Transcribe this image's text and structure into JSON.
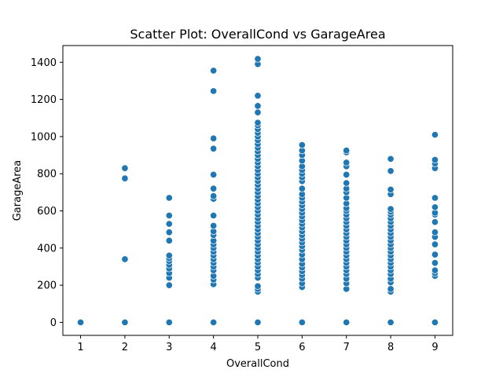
{
  "chart_data": {
    "type": "scatter",
    "title": "Scatter Plot: OverallCond vs GarageArea",
    "xlabel": "OverallCond",
    "ylabel": "GarageArea",
    "xlim": [
      0.6,
      9.4
    ],
    "ylim": [
      -70,
      1490
    ],
    "xticks": [
      1,
      2,
      3,
      4,
      5,
      6,
      7,
      8,
      9
    ],
    "yticks": [
      0,
      200,
      400,
      600,
      800,
      1000,
      1200,
      1400
    ],
    "grid": false,
    "point_color": "#1f77b4",
    "series": [
      {
        "points": [
          [
            1,
            0
          ],
          [
            2,
            0
          ],
          [
            2,
            340
          ],
          [
            2,
            775
          ],
          [
            2,
            830
          ],
          [
            3,
            0
          ],
          [
            3,
            200
          ],
          [
            3,
            240
          ],
          [
            3,
            265
          ],
          [
            3,
            290
          ],
          [
            3,
            310
          ],
          [
            3,
            330
          ],
          [
            3,
            345
          ],
          [
            3,
            360
          ],
          [
            3,
            440
          ],
          [
            3,
            485
          ],
          [
            3,
            530
          ],
          [
            3,
            575
          ],
          [
            3,
            670
          ],
          [
            4,
            0
          ],
          [
            4,
            205
          ],
          [
            4,
            230
          ],
          [
            4,
            250
          ],
          [
            4,
            280
          ],
          [
            4,
            300
          ],
          [
            4,
            320
          ],
          [
            4,
            340
          ],
          [
            4,
            360
          ],
          [
            4,
            380
          ],
          [
            4,
            400
          ],
          [
            4,
            420
          ],
          [
            4,
            440
          ],
          [
            4,
            470
          ],
          [
            4,
            490
          ],
          [
            4,
            520
          ],
          [
            4,
            575
          ],
          [
            4,
            665
          ],
          [
            4,
            680
          ],
          [
            4,
            720
          ],
          [
            4,
            795
          ],
          [
            4,
            935
          ],
          [
            4,
            990
          ],
          [
            4,
            1245
          ],
          [
            4,
            1355
          ],
          [
            5,
            0
          ],
          [
            5,
            165
          ],
          [
            5,
            180
          ],
          [
            5,
            195
          ],
          [
            5,
            240
          ],
          [
            5,
            260
          ],
          [
            5,
            280
          ],
          [
            5,
            300
          ],
          [
            5,
            320
          ],
          [
            5,
            340
          ],
          [
            5,
            360
          ],
          [
            5,
            380
          ],
          [
            5,
            400
          ],
          [
            5,
            420
          ],
          [
            5,
            440
          ],
          [
            5,
            460
          ],
          [
            5,
            480
          ],
          [
            5,
            500
          ],
          [
            5,
            520
          ],
          [
            5,
            540
          ],
          [
            5,
            560
          ],
          [
            5,
            580
          ],
          [
            5,
            600
          ],
          [
            5,
            620
          ],
          [
            5,
            640
          ],
          [
            5,
            660
          ],
          [
            5,
            680
          ],
          [
            5,
            700
          ],
          [
            5,
            720
          ],
          [
            5,
            740
          ],
          [
            5,
            760
          ],
          [
            5,
            780
          ],
          [
            5,
            800
          ],
          [
            5,
            820
          ],
          [
            5,
            840
          ],
          [
            5,
            860
          ],
          [
            5,
            880
          ],
          [
            5,
            900
          ],
          [
            5,
            920
          ],
          [
            5,
            940
          ],
          [
            5,
            960
          ],
          [
            5,
            980
          ],
          [
            5,
            1000
          ],
          [
            5,
            1020
          ],
          [
            5,
            1040
          ],
          [
            5,
            1060
          ],
          [
            5,
            1075
          ],
          [
            5,
            1130
          ],
          [
            5,
            1165
          ],
          [
            5,
            1220
          ],
          [
            5,
            1390
          ],
          [
            5,
            1418
          ],
          [
            6,
            0
          ],
          [
            6,
            190
          ],
          [
            6,
            210
          ],
          [
            6,
            235
          ],
          [
            6,
            255
          ],
          [
            6,
            275
          ],
          [
            6,
            295
          ],
          [
            6,
            315
          ],
          [
            6,
            340
          ],
          [
            6,
            365
          ],
          [
            6,
            390
          ],
          [
            6,
            410
          ],
          [
            6,
            430
          ],
          [
            6,
            450
          ],
          [
            6,
            470
          ],
          [
            6,
            490
          ],
          [
            6,
            510
          ],
          [
            6,
            530
          ],
          [
            6,
            550
          ],
          [
            6,
            570
          ],
          [
            6,
            590
          ],
          [
            6,
            610
          ],
          [
            6,
            630
          ],
          [
            6,
            650
          ],
          [
            6,
            670
          ],
          [
            6,
            690
          ],
          [
            6,
            720
          ],
          [
            6,
            760
          ],
          [
            6,
            780
          ],
          [
            6,
            800
          ],
          [
            6,
            820
          ],
          [
            6,
            840
          ],
          [
            6,
            870
          ],
          [
            6,
            900
          ],
          [
            6,
            925
          ],
          [
            6,
            955
          ],
          [
            7,
            0
          ],
          [
            7,
            180
          ],
          [
            7,
            210
          ],
          [
            7,
            235
          ],
          [
            7,
            260
          ],
          [
            7,
            280
          ],
          [
            7,
            300
          ],
          [
            7,
            320
          ],
          [
            7,
            340
          ],
          [
            7,
            360
          ],
          [
            7,
            380
          ],
          [
            7,
            400
          ],
          [
            7,
            420
          ],
          [
            7,
            440
          ],
          [
            7,
            460
          ],
          [
            7,
            480
          ],
          [
            7,
            500
          ],
          [
            7,
            520
          ],
          [
            7,
            540
          ],
          [
            7,
            560
          ],
          [
            7,
            580
          ],
          [
            7,
            600
          ],
          [
            7,
            615
          ],
          [
            7,
            640
          ],
          [
            7,
            670
          ],
          [
            7,
            700
          ],
          [
            7,
            720
          ],
          [
            7,
            750
          ],
          [
            7,
            795
          ],
          [
            7,
            840
          ],
          [
            7,
            860
          ],
          [
            7,
            915
          ],
          [
            7,
            925
          ],
          [
            8,
            0
          ],
          [
            8,
            165
          ],
          [
            8,
            180
          ],
          [
            8,
            215
          ],
          [
            8,
            235
          ],
          [
            8,
            260
          ],
          [
            8,
            280
          ],
          [
            8,
            300
          ],
          [
            8,
            320
          ],
          [
            8,
            340
          ],
          [
            8,
            360
          ],
          [
            8,
            380
          ],
          [
            8,
            400
          ],
          [
            8,
            420
          ],
          [
            8,
            440
          ],
          [
            8,
            460
          ],
          [
            8,
            480
          ],
          [
            8,
            500
          ],
          [
            8,
            520
          ],
          [
            8,
            540
          ],
          [
            8,
            560
          ],
          [
            8,
            580
          ],
          [
            8,
            595
          ],
          [
            8,
            610
          ],
          [
            8,
            690
          ],
          [
            8,
            715
          ],
          [
            8,
            815
          ],
          [
            8,
            880
          ],
          [
            9,
            0
          ],
          [
            9,
            250
          ],
          [
            9,
            265
          ],
          [
            9,
            280
          ],
          [
            9,
            320
          ],
          [
            9,
            365
          ],
          [
            9,
            420
          ],
          [
            9,
            460
          ],
          [
            9,
            485
          ],
          [
            9,
            540
          ],
          [
            9,
            580
          ],
          [
            9,
            590
          ],
          [
            9,
            620
          ],
          [
            9,
            670
          ],
          [
            9,
            830
          ],
          [
            9,
            855
          ],
          [
            9,
            875
          ],
          [
            9,
            1010
          ]
        ]
      }
    ]
  }
}
